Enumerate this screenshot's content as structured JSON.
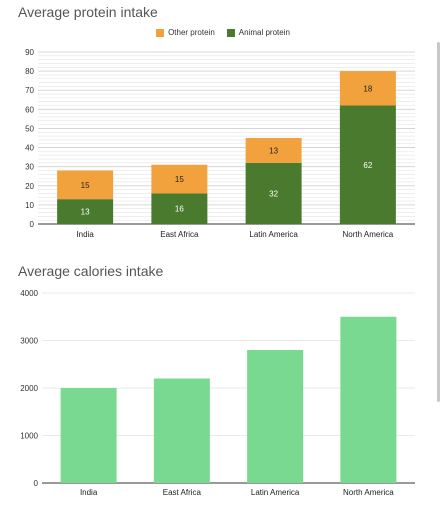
{
  "colors": {
    "other_protein": "#f2a23c",
    "animal_protein": "#4a7a2e",
    "calories": "#7ad991",
    "grid": "#e3e3e3",
    "axis": "#333333"
  },
  "chart_data": [
    {
      "type": "bar",
      "stacked": true,
      "title": "Average protein intake",
      "categories": [
        "India",
        "East Africa",
        "Latin America",
        "North America"
      ],
      "series": [
        {
          "name": "Animal protein",
          "values": [
            13,
            16,
            32,
            62
          ]
        },
        {
          "name": "Other protein",
          "values": [
            15,
            15,
            13,
            18
          ]
        }
      ],
      "legend": "top",
      "ylim": [
        0,
        90
      ],
      "yticks": [
        0,
        10,
        20,
        30,
        40,
        50,
        60,
        70,
        80,
        90
      ],
      "grid": true
    },
    {
      "type": "bar",
      "stacked": false,
      "title": "Average calories intake",
      "categories": [
        "India",
        "East Africa",
        "Latin America",
        "North America"
      ],
      "values": [
        2000,
        2200,
        2800,
        3500
      ],
      "ylim": [
        0,
        4000
      ],
      "yticks": [
        0,
        1000,
        2000,
        3000,
        4000
      ],
      "grid": true
    }
  ]
}
